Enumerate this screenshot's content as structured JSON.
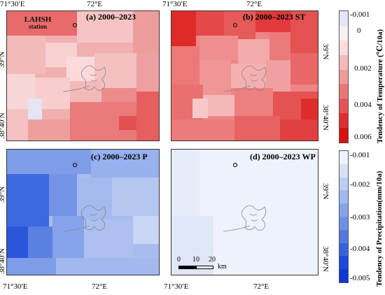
{
  "panels": {
    "a": {
      "title": "(a) 2000–2023",
      "colors": [
        "#f3b7b7",
        "#efa0a0",
        "#f6c7c7",
        "#fadcdc",
        "#eb8e8e",
        "#e86b6b"
      ]
    },
    "b": {
      "title": "(b) 2000–2023 ST"
    },
    "c": {
      "title": "(c) 2000–2023 P"
    },
    "d": {
      "title": "(d) 2000–2023 WP"
    }
  },
  "station": {
    "label_line1": "LAHSH",
    "label_line2": "station"
  },
  "axes": {
    "top_lon": [
      "71°30′E",
      "72°E",
      "71°30′E",
      "72°E"
    ],
    "bottom_lon": [
      "71°30′E",
      "72°E",
      "71°30′E",
      "72°E"
    ],
    "lat_left_top": [
      "39°N",
      "38°40′N"
    ],
    "lat_left_bottom": [
      "39°N",
      "38°40′N"
    ],
    "lat_right_top": [
      "39°N",
      "38°40′N"
    ],
    "lat_right_bottom": [
      "39°N",
      "38°40′N"
    ]
  },
  "temp_colorbar": {
    "title": "Tendency of Temperature (℃/10a)",
    "labels": [
      "-0.001",
      "0",
      "0.002",
      "0.004",
      "0.006"
    ],
    "colors": [
      "#e6e6fa",
      "#f7f0f0",
      "#fbdcdc",
      "#f6b9b9",
      "#f09a9a",
      "#ea7777",
      "#e45454",
      "#de2f2f",
      "#d91010"
    ]
  },
  "precip_colorbar": {
    "title": "Tendency of Precipitation(mm/10a)",
    "labels": [
      "-0.001",
      "-0.002",
      "-0.003",
      "-0.004",
      "-0.005"
    ],
    "colors": [
      "#eef2fb",
      "#d6e0f7",
      "#bccdf3",
      "#a2b9ee",
      "#87a4ea",
      "#6d8fe5",
      "#5279e0",
      "#3862dc",
      "#1e4ad8",
      "#0f38d4"
    ]
  },
  "scale": {
    "labels": [
      "0",
      "10",
      "20"
    ],
    "unit": "km"
  }
}
